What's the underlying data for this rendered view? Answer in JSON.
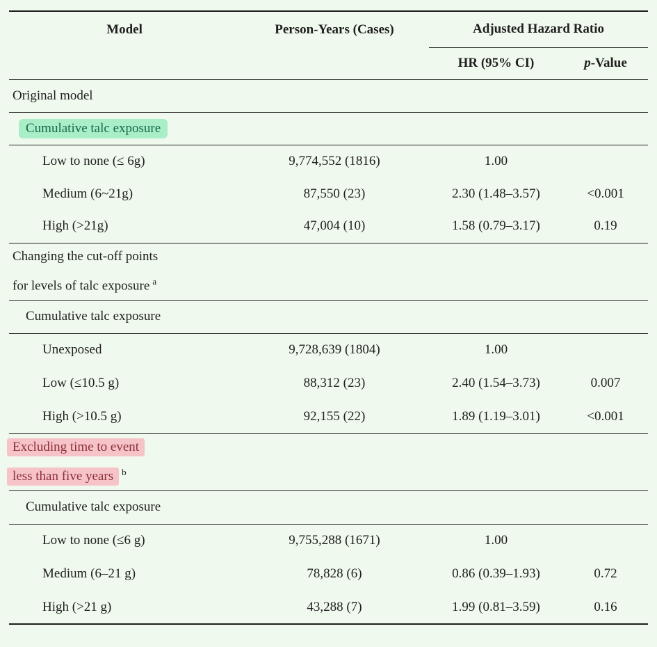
{
  "colors": {
    "background": "#f0f9ee",
    "text": "#1f1f1f",
    "rule": "#1c1c1c",
    "green_highlight_bg": "#aaeec8",
    "green_highlight_text": "#15694d",
    "pink_highlight_bg": "#f6c3c9",
    "pink_highlight_text": "#8c3038"
  },
  "header": {
    "model": "Model",
    "person_years": "Person-Years (Cases)",
    "adjusted_hazard_ratio": "Adjusted Hazard Ratio",
    "hr_ci": "HR (95% CI)",
    "p_value_italic": "p",
    "p_value_rest": "-Value"
  },
  "rows": [
    {
      "type": "section",
      "label": "Original model"
    },
    {
      "type": "section",
      "label": "Cumulative talc exposure",
      "highlight": "green"
    },
    {
      "type": "data",
      "model": "Low to none (≤ 6g)",
      "person_years": "9,774,552 (1816)",
      "hr_ci": "1.00",
      "p_value": ""
    },
    {
      "type": "data",
      "model": "Medium (6~21g)",
      "person_years": "87,550 (23)",
      "hr_ci": "2.30 (1.48–3.57)",
      "p_value": "<0.001"
    },
    {
      "type": "data",
      "model": "High (>21g)",
      "person_years": "47,004 (10)",
      "hr_ci": "1.58 (0.79–3.17)",
      "p_value": "0.19"
    },
    {
      "type": "section",
      "lines": [
        "Changing the cut-off points",
        "for levels of talc exposure"
      ],
      "sup": "a"
    },
    {
      "type": "section",
      "label": "Cumulative talc exposure"
    },
    {
      "type": "data",
      "model": "Unexposed",
      "person_years": "9,728,639 (1804)",
      "hr_ci": "1.00",
      "p_value": ""
    },
    {
      "type": "data",
      "model": "Low (≤10.5 g)",
      "person_years": "88,312 (23)",
      "hr_ci": "2.40 (1.54–3.73)",
      "p_value": "0.007"
    },
    {
      "type": "data",
      "model": "High (>10.5 g)",
      "person_years": "92,155 (22)",
      "hr_ci": "1.89 (1.19–3.01)",
      "p_value": "<0.001"
    },
    {
      "type": "section",
      "lines": [
        "Excluding time to event",
        "less than five years"
      ],
      "sup": "b",
      "highlight": "pink"
    },
    {
      "type": "section",
      "label": "Cumulative talc exposure"
    },
    {
      "type": "data",
      "model": "Low to none (≤6 g)",
      "person_years": "9,755,288 (1671)",
      "hr_ci": "1.00",
      "p_value": ""
    },
    {
      "type": "data",
      "model": "Medium (6–21 g)",
      "person_years": "78,828 (6)",
      "hr_ci": "0.86 (0.39–1.93)",
      "p_value": "0.72"
    },
    {
      "type": "data",
      "model": "High (>21 g)",
      "person_years": "43,288 (7)",
      "hr_ci": "1.99 (0.81–3.59)",
      "p_value": "0.16"
    }
  ]
}
